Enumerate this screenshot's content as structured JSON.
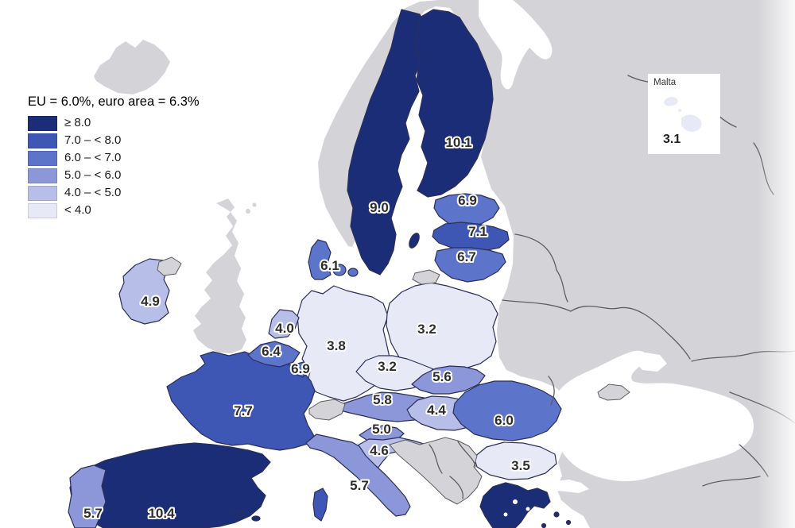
{
  "legend": {
    "title": "EU = 6.0%, euro area = 6.3%",
    "bins": [
      {
        "label": "≥ 8.0",
        "color": "#1c2d78",
        "min": 8
      },
      {
        "label": "7.0 – < 8.0",
        "color": "#3e57b4",
        "min": 7
      },
      {
        "label": "6.0 – < 7.0",
        "color": "#5c74c9",
        "min": 6
      },
      {
        "label": "5.0 – < 6.0",
        "color": "#8b97d8",
        "min": 5
      },
      {
        "label": "4.0 – < 5.0",
        "color": "#b7bfe8",
        "min": 4
      },
      {
        "label": "< 4.0",
        "color": "#e7e9f6",
        "min": 0
      }
    ]
  },
  "inset": {
    "title": "Malta",
    "value": "3.1"
  },
  "map": {
    "colors": {
      "sea": "#ffffff",
      "non_eu_land": "#d4d4d8",
      "eu_border": "#2b2f58",
      "non_eu_border": "#5d5d63",
      "value_label": "#2d2d2d"
    },
    "countries": [
      {
        "name": "Finland",
        "value": "10.1"
      },
      {
        "name": "Sweden",
        "value": "9.0"
      },
      {
        "name": "Estonia",
        "value": "6.9"
      },
      {
        "name": "Latvia",
        "value": "7.1"
      },
      {
        "name": "Lithuania",
        "value": "6.7"
      },
      {
        "name": "Denmark",
        "value": "6.1"
      },
      {
        "name": "Ireland",
        "value": "4.9"
      },
      {
        "name": "Netherlands",
        "value": "4.0"
      },
      {
        "name": "Belgium",
        "value": "6.4"
      },
      {
        "name": "Luxembourg",
        "value": "6.9"
      },
      {
        "name": "Germany",
        "value": "3.8"
      },
      {
        "name": "Poland",
        "value": "3.2"
      },
      {
        "name": "Czechia",
        "value": "3.2"
      },
      {
        "name": "Slovakia",
        "value": "5.6"
      },
      {
        "name": "Austria",
        "value": "5.8"
      },
      {
        "name": "Hungary",
        "value": "4.4"
      },
      {
        "name": "Slovenia",
        "value": "5.0"
      },
      {
        "name": "Croatia",
        "value": "4.6"
      },
      {
        "name": "Romania",
        "value": "6.0"
      },
      {
        "name": "Bulgaria",
        "value": "3.5"
      },
      {
        "name": "Italy",
        "value": "5.7"
      },
      {
        "name": "France",
        "value": "7.7"
      },
      {
        "name": "Spain",
        "value": "10.4"
      },
      {
        "name": "Portugal",
        "value": "5.7"
      },
      {
        "name": "Greece",
        "value": "",
        "bin_label": "≥ 8.0"
      },
      {
        "name": "Malta",
        "value": "3.1"
      }
    ]
  }
}
